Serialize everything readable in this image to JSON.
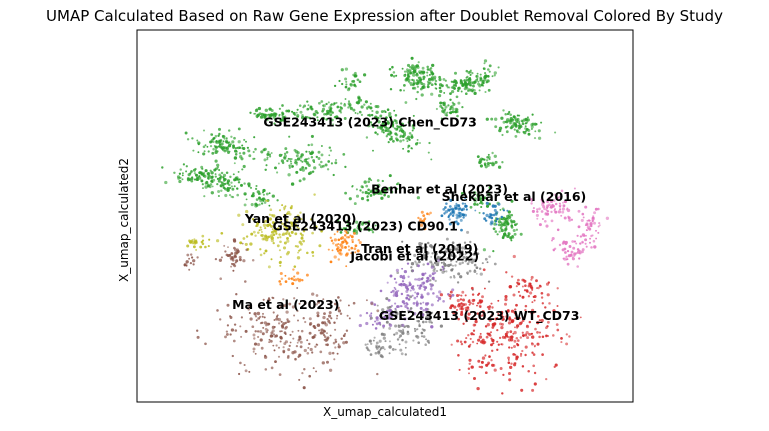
{
  "chart_data": {
    "type": "scatter",
    "title": "UMAP Calculated Based on Raw Gene Expression after Doublet Removal Colored By Study",
    "xlabel": "X_umap_calculated1",
    "ylabel": "X_umap_calculated2",
    "xlim": [
      0,
      100
    ],
    "ylim": [
      0,
      100
    ],
    "ticks": false,
    "grid": false,
    "legend": "none",
    "series": [
      {
        "name": "GSE243413 (2023) Chen_CD73",
        "color": "#2ca02c",
        "centroid": [
          47,
          75
        ]
      },
      {
        "name": "Benhar et al (2023)",
        "color": "#1f77b4",
        "centroid": [
          61,
          57
        ]
      },
      {
        "name": "Shekhar et al (2016)",
        "color": "#e377c2",
        "centroid": [
          76,
          55
        ]
      },
      {
        "name": "Yan et al (2020)",
        "color": "#bcbd22",
        "centroid": [
          33,
          49
        ]
      },
      {
        "name": "GSE243413 (2023) CD90.1",
        "color": "#ff7f0e",
        "centroid": [
          46,
          47
        ]
      },
      {
        "name": "Tran et al (2019)",
        "color": "#7f7f7f",
        "centroid": [
          57,
          41
        ]
      },
      {
        "name": "Jacobi et al (2022)",
        "color": "#9467bd",
        "centroid": [
          56,
          39
        ]
      },
      {
        "name": "Ma et al (2023)",
        "color": "#8c564b",
        "centroid": [
          30,
          26
        ]
      },
      {
        "name": "GSE243413 (2023) WT_CD73",
        "color": "#d62728",
        "centroid": [
          69,
          23
        ]
      }
    ]
  }
}
